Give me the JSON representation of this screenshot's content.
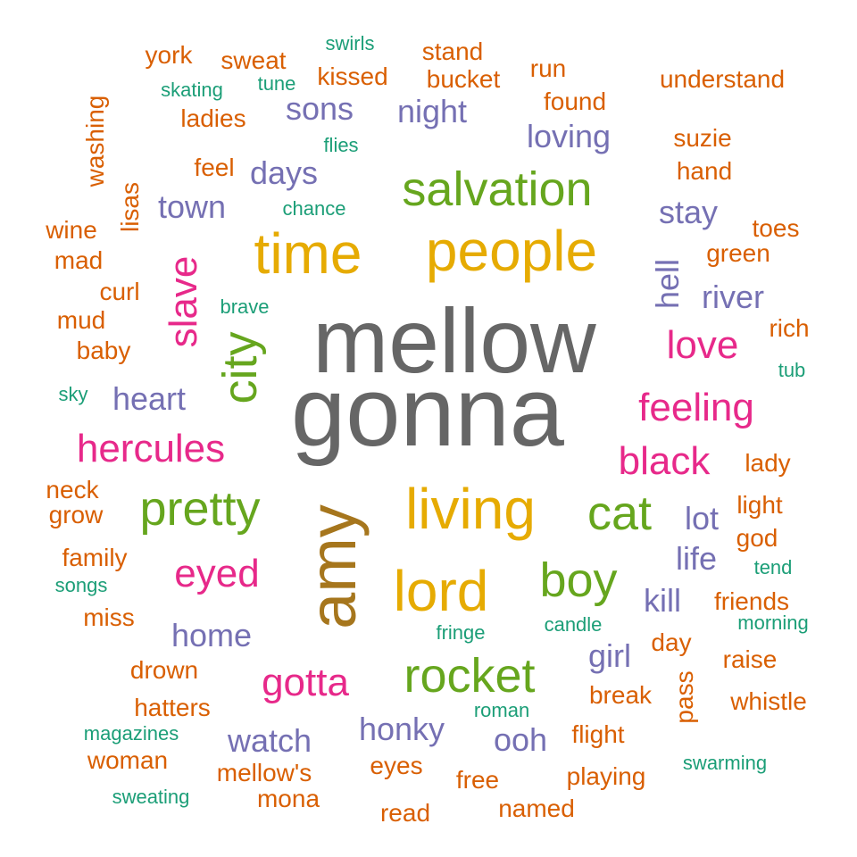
{
  "palette": {
    "orange": "#d95f02",
    "teal": "#1b9e77",
    "purple": "#7570b3",
    "magenta": "#e7298a",
    "green": "#66a61e",
    "gold": "#e6ab02",
    "brown": "#a6761d",
    "gray": "#666666"
  },
  "words": [
    {
      "text": "mellow",
      "color": "gray"
    },
    {
      "text": "gonna",
      "color": "gray"
    },
    {
      "text": "amy",
      "color": "brown"
    },
    {
      "text": "people",
      "color": "gold"
    },
    {
      "text": "time",
      "color": "gold"
    },
    {
      "text": "living",
      "color": "gold"
    },
    {
      "text": "lord",
      "color": "gold"
    },
    {
      "text": "salvation",
      "color": "green"
    },
    {
      "text": "pretty",
      "color": "green"
    },
    {
      "text": "rocket",
      "color": "green"
    },
    {
      "text": "boy",
      "color": "green"
    },
    {
      "text": "cat",
      "color": "green"
    },
    {
      "text": "city",
      "color": "green"
    },
    {
      "text": "hercules",
      "color": "magenta"
    },
    {
      "text": "slave",
      "color": "magenta"
    },
    {
      "text": "feeling",
      "color": "magenta"
    },
    {
      "text": "black",
      "color": "magenta"
    },
    {
      "text": "love",
      "color": "magenta"
    },
    {
      "text": "eyed",
      "color": "magenta"
    },
    {
      "text": "gotta",
      "color": "magenta"
    },
    {
      "text": "night",
      "color": "purple"
    },
    {
      "text": "sons",
      "color": "purple"
    },
    {
      "text": "loving",
      "color": "purple"
    },
    {
      "text": "days",
      "color": "purple"
    },
    {
      "text": "town",
      "color": "purple"
    },
    {
      "text": "stay",
      "color": "purple"
    },
    {
      "text": "hell",
      "color": "purple"
    },
    {
      "text": "river",
      "color": "purple"
    },
    {
      "text": "heart",
      "color": "purple"
    },
    {
      "text": "lot",
      "color": "purple"
    },
    {
      "text": "life",
      "color": "purple"
    },
    {
      "text": "kill",
      "color": "purple"
    },
    {
      "text": "home",
      "color": "purple"
    },
    {
      "text": "girl",
      "color": "purple"
    },
    {
      "text": "honky",
      "color": "purple"
    },
    {
      "text": "watch",
      "color": "purple"
    },
    {
      "text": "ooh",
      "color": "purple"
    },
    {
      "text": "york",
      "color": "orange"
    },
    {
      "text": "sweat",
      "color": "orange"
    },
    {
      "text": "stand",
      "color": "orange"
    },
    {
      "text": "bucket",
      "color": "orange"
    },
    {
      "text": "kissed",
      "color": "orange"
    },
    {
      "text": "run",
      "color": "orange"
    },
    {
      "text": "understand",
      "color": "orange"
    },
    {
      "text": "found",
      "color": "orange"
    },
    {
      "text": "ladies",
      "color": "orange"
    },
    {
      "text": "washing",
      "color": "orange"
    },
    {
      "text": "suzie",
      "color": "orange"
    },
    {
      "text": "hand",
      "color": "orange"
    },
    {
      "text": "feel",
      "color": "orange"
    },
    {
      "text": "wine",
      "color": "orange"
    },
    {
      "text": "lisas",
      "color": "orange"
    },
    {
      "text": "toes",
      "color": "orange"
    },
    {
      "text": "mad",
      "color": "orange"
    },
    {
      "text": "green",
      "color": "orange"
    },
    {
      "text": "curl",
      "color": "orange"
    },
    {
      "text": "mud",
      "color": "orange"
    },
    {
      "text": "rich",
      "color": "orange"
    },
    {
      "text": "baby",
      "color": "orange"
    },
    {
      "text": "lady",
      "color": "orange"
    },
    {
      "text": "neck",
      "color": "orange"
    },
    {
      "text": "grow",
      "color": "orange"
    },
    {
      "text": "light",
      "color": "orange"
    },
    {
      "text": "god",
      "color": "orange"
    },
    {
      "text": "family",
      "color": "orange"
    },
    {
      "text": "friends",
      "color": "orange"
    },
    {
      "text": "miss",
      "color": "orange"
    },
    {
      "text": "day",
      "color": "orange"
    },
    {
      "text": "raise",
      "color": "orange"
    },
    {
      "text": "drown",
      "color": "orange"
    },
    {
      "text": "pass",
      "color": "orange"
    },
    {
      "text": "break",
      "color": "orange"
    },
    {
      "text": "whistle",
      "color": "orange"
    },
    {
      "text": "hatters",
      "color": "orange"
    },
    {
      "text": "flight",
      "color": "orange"
    },
    {
      "text": "woman",
      "color": "orange"
    },
    {
      "text": "mellow's",
      "color": "orange"
    },
    {
      "text": "eyes",
      "color": "orange"
    },
    {
      "text": "free",
      "color": "orange"
    },
    {
      "text": "playing",
      "color": "orange"
    },
    {
      "text": "mona",
      "color": "orange"
    },
    {
      "text": "named",
      "color": "orange"
    },
    {
      "text": "read",
      "color": "orange"
    },
    {
      "text": "swirls",
      "color": "teal"
    },
    {
      "text": "skating",
      "color": "teal"
    },
    {
      "text": "tune",
      "color": "teal"
    },
    {
      "text": "flies",
      "color": "teal"
    },
    {
      "text": "chance",
      "color": "teal"
    },
    {
      "text": "brave",
      "color": "teal"
    },
    {
      "text": "sky",
      "color": "teal"
    },
    {
      "text": "tub",
      "color": "teal"
    },
    {
      "text": "tend",
      "color": "teal"
    },
    {
      "text": "songs",
      "color": "teal"
    },
    {
      "text": "candle",
      "color": "teal"
    },
    {
      "text": "fringe",
      "color": "teal"
    },
    {
      "text": "morning",
      "color": "teal"
    },
    {
      "text": "roman",
      "color": "teal"
    },
    {
      "text": "magazines",
      "color": "teal"
    },
    {
      "text": "swarming",
      "color": "teal"
    },
    {
      "text": "sweating",
      "color": "teal"
    }
  ]
}
